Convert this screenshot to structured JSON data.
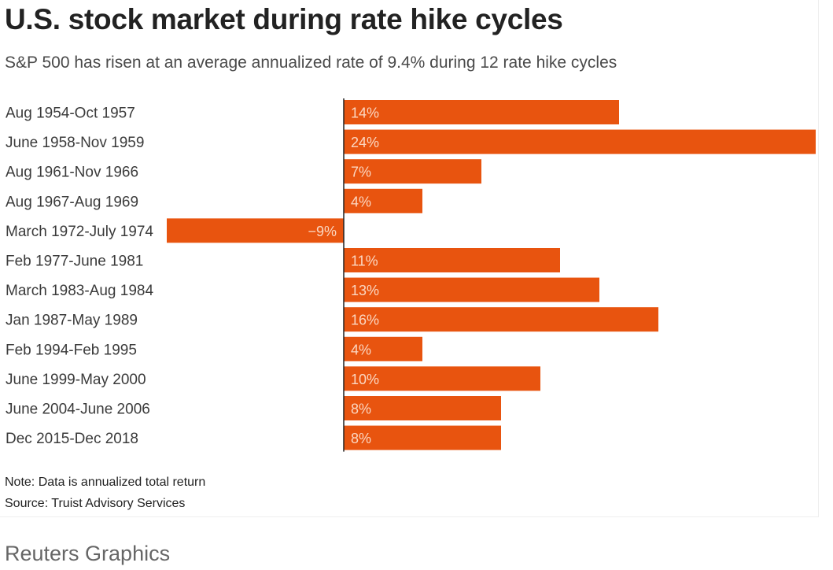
{
  "chart_data": {
    "type": "bar",
    "orientation": "horizontal",
    "title": "U.S. stock market during rate hike cycles",
    "subtitle": "S&P 500 has risen at an average annualized rate of 9.4% during 12 rate hike cycles",
    "categories": [
      "Aug 1954-Oct 1957",
      "June 1958-Nov 1959",
      "Aug 1961-Nov 1966",
      "Aug 1967-Aug 1969",
      "March 1972-July 1974",
      "Feb 1977-June 1981",
      "March 1983-Aug 1984",
      "Jan 1987-May 1989",
      "Feb 1994-Feb 1995",
      "June 1999-May 2000",
      "June 2004-June 2006",
      "Dec 2015-Dec 2018"
    ],
    "values": [
      14,
      24,
      7,
      4,
      -9,
      11,
      13,
      16,
      4,
      10,
      8,
      8
    ],
    "value_labels": [
      "14%",
      "24%",
      "7%",
      "4%",
      "−9%",
      "11%",
      "13%",
      "16%",
      "4%",
      "10%",
      "8%",
      "8%"
    ],
    "unit": "%",
    "xlim": [
      -9,
      24
    ],
    "grid": false,
    "bar_color": "#e8540f",
    "label_color": "#fbd7c2"
  },
  "footer": {
    "note": "Note: Data is annualized total return",
    "source": "Source: Truist Advisory Services"
  },
  "credit": "Reuters Graphics"
}
